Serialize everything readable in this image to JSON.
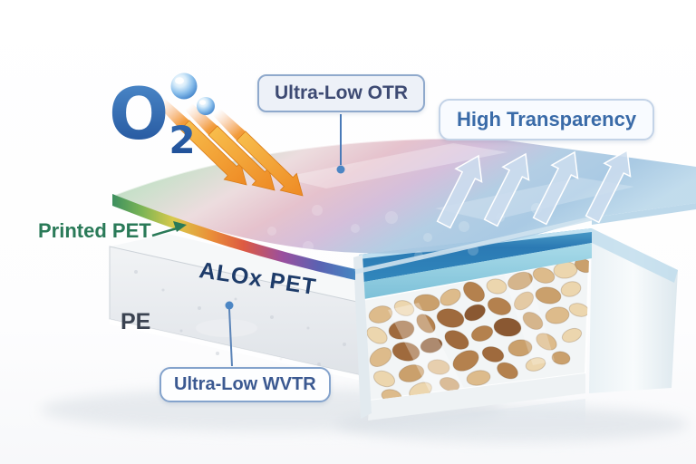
{
  "diagram": {
    "o2": {
      "symbol": "O",
      "subscript": "2",
      "color": "#2457a0"
    },
    "callouts": {
      "otr": {
        "text": "Ultra-Low OTR",
        "text_color": "#3d4a73",
        "border_color": "#8fa9cc",
        "bg_color": "#edf1f8"
      },
      "transparency": {
        "text": "High Transparency",
        "text_color": "#3a6ba8",
        "border_color": "#c3d3e7",
        "bg_color": "#f8fbff"
      },
      "wvtr": {
        "text": "Ultra-Low WVTR",
        "text_color": "#3b5991",
        "border_color": "#84a3cc",
        "bg_color": "#fdfeff"
      }
    },
    "film_layers": {
      "printed_pet": {
        "label": "Printed PET",
        "color": "#2a7a58"
      },
      "alox_pet": {
        "label": "ALOx PET",
        "color": "#1d3b69"
      },
      "pe": {
        "label": "PE",
        "color": "#3b4351"
      }
    },
    "icons": {
      "o2_arrows": {
        "name": "oxygen-barrier-arrows-icon",
        "count": 3,
        "color": "#f59d35",
        "direction": "down-right"
      },
      "transparency_arrows": {
        "name": "light-through-arrows-icon",
        "count": 4,
        "color": "#ccddee",
        "direction": "up-right"
      },
      "o2_bubbles": {
        "name": "oxygen-bubbles-icon",
        "count": 2,
        "color": "#5a9ad8"
      },
      "package": {
        "name": "nut-package-illustration"
      }
    }
  }
}
